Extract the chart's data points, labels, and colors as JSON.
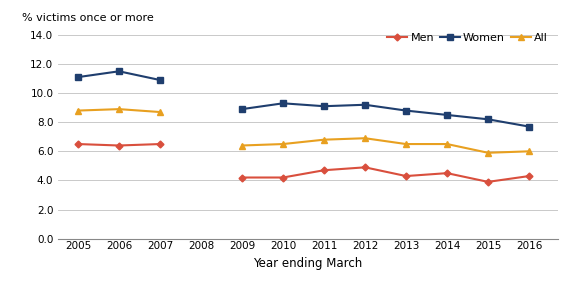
{
  "years": [
    2005,
    2006,
    2007,
    2008,
    2009,
    2010,
    2011,
    2012,
    2013,
    2014,
    2015,
    2016
  ],
  "men": [
    6.5,
    6.4,
    6.5,
    null,
    4.2,
    4.2,
    4.7,
    4.9,
    4.3,
    4.5,
    3.9,
    4.3
  ],
  "women": [
    11.1,
    11.5,
    10.9,
    null,
    8.9,
    9.3,
    9.1,
    9.2,
    8.8,
    8.5,
    8.2,
    7.7
  ],
  "all": [
    8.8,
    8.9,
    8.7,
    null,
    6.4,
    6.5,
    6.8,
    6.9,
    6.5,
    6.5,
    5.9,
    6.0
  ],
  "men_color": "#d94f3d",
  "women_color": "#1f3e6e",
  "all_color": "#e8a020",
  "top_label": "% victims once or more",
  "xlabel": "Year ending March",
  "ylim": [
    0.0,
    14.0
  ],
  "yticks": [
    0.0,
    2.0,
    4.0,
    6.0,
    8.0,
    10.0,
    12.0,
    14.0
  ],
  "xlim": [
    2004.5,
    2016.7
  ]
}
